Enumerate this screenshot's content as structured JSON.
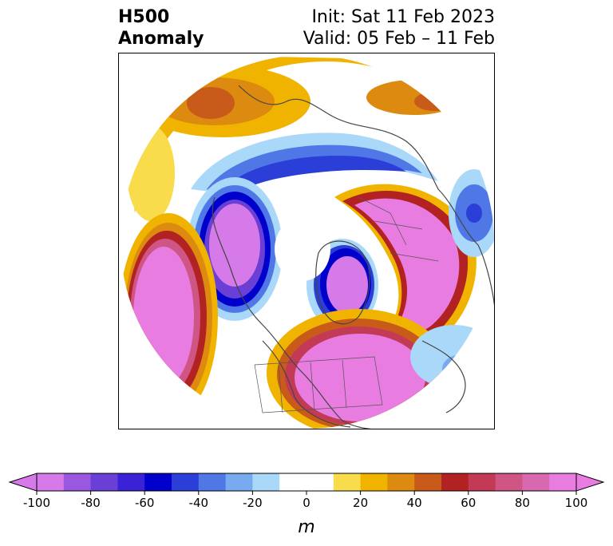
{
  "title": {
    "left_line1": "H500",
    "left_line2": "Anomaly",
    "right_line1": "Init: Sat 11 Feb 2023",
    "right_line2": "Valid: 05 Feb – 11 Feb"
  },
  "colorbar": {
    "unit": "m",
    "min": -100,
    "max": 100,
    "tick_labels": [
      "-100",
      "-80",
      "-60",
      "-40",
      "-20",
      "0",
      "20",
      "40",
      "60",
      "80",
      "100"
    ],
    "colors": [
      "#d57ae8",
      "#9a57e0",
      "#6a3fd6",
      "#3a23d6",
      "#0000cc",
      "#2c3ed8",
      "#4f78e6",
      "#77aaee",
      "#aad8f8",
      "#ffffff",
      "#ffffff",
      "#f9dc4c",
      "#f0b400",
      "#dc8a10",
      "#c85a1a",
      "#b22222",
      "#c23a55",
      "#cf5585",
      "#d868b0",
      "#e87ce0"
    ]
  }
}
